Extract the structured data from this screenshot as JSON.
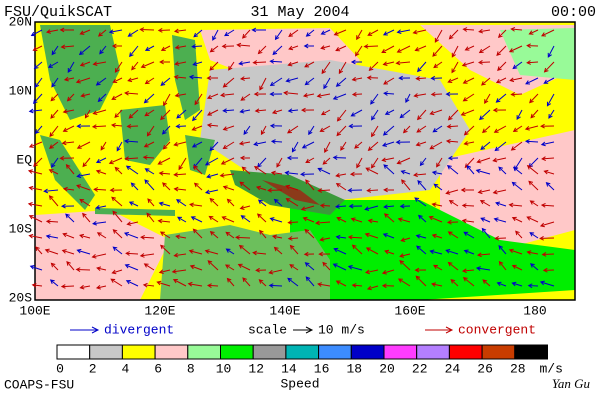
{
  "header": {
    "left": "FSU/QuikSCAT",
    "center": "31 May 2004",
    "right": "00:00"
  },
  "axes": {
    "lat_labels": [
      "20N",
      "10N",
      "EQ",
      "10S",
      "20S"
    ],
    "lon_labels": [
      "100E",
      "120E",
      "140E",
      "160E",
      "180"
    ]
  },
  "legend": {
    "divergent": "divergent",
    "scale": "scale",
    "scale_value": "10 m/s",
    "convergent": "convergent"
  },
  "colorbar": {
    "colors": [
      "#ffffff",
      "#c8c8c8",
      "#ffff00",
      "#ffc8c8",
      "#98fa98",
      "#00ee00",
      "#999999",
      "#00b4b4",
      "#3c8cff",
      "#0000c8",
      "#ff3cff",
      "#b47fff",
      "#ff0000",
      "#c83c00",
      "#000000"
    ],
    "ticks": [
      0,
      2,
      4,
      6,
      8,
      10,
      12,
      14,
      16,
      18,
      20,
      22,
      24,
      26,
      28
    ],
    "unit": "m/s",
    "title": "Speed"
  },
  "footer": {
    "left": "COAPS-FSU",
    "right": "Yan Gu"
  }
}
